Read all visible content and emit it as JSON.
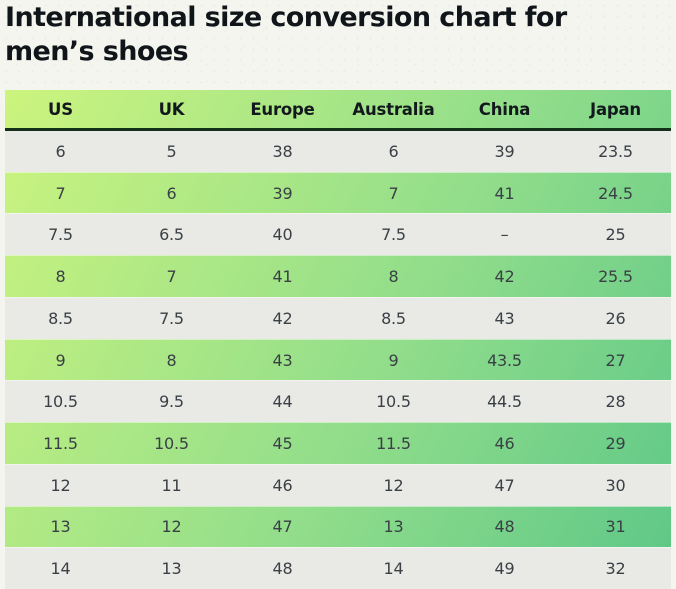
{
  "page": {
    "title": "International size conversion chart for men’s shoes"
  },
  "table": {
    "columns": [
      "US",
      "UK",
      "Europe",
      "Australia",
      "China",
      "Japan"
    ],
    "rows": [
      [
        "6",
        "5",
        "38",
        "6",
        "39",
        "23.5"
      ],
      [
        "7",
        "6",
        "39",
        "7",
        "41",
        "24.5"
      ],
      [
        "7.5",
        "6.5",
        "40",
        "7.5",
        "–",
        "25"
      ],
      [
        "8",
        "7",
        "41",
        "8",
        "42",
        "25.5"
      ],
      [
        "8.5",
        "7.5",
        "42",
        "8.5",
        "43",
        "26"
      ],
      [
        "9",
        "8",
        "43",
        "9",
        "43.5",
        "27"
      ],
      [
        "10.5",
        "9.5",
        "44",
        "10.5",
        "44.5",
        "28"
      ],
      [
        "11.5",
        "10.5",
        "45",
        "11.5",
        "46",
        "29"
      ],
      [
        "12",
        "11",
        "46",
        "12",
        "47",
        "30"
      ],
      [
        "13",
        "12",
        "47",
        "13",
        "48",
        "31"
      ],
      [
        "14",
        "13",
        "48",
        "14",
        "49",
        "32"
      ]
    ]
  },
  "colors": {
    "page_background": "#f5f5f0",
    "title_text": "#101519",
    "gradient_start": "#ccf47e",
    "gradient_mid": "#93de8b",
    "gradient_end": "#5dc787",
    "header_divider": "#12301a",
    "gray_row": "#e9eae6",
    "cell_text": "#3a4045",
    "header_text": "#13181c"
  }
}
